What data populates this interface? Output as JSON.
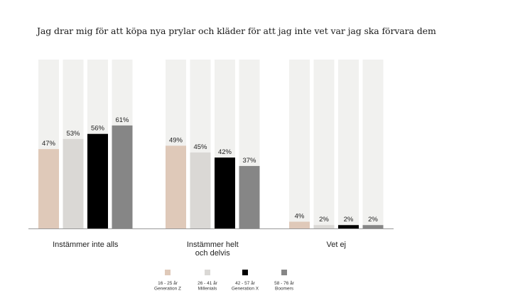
{
  "chart_data": {
    "type": "bar",
    "title": "Jag drar mig för att köpa nya prylar och kläder för att jag inte vet var jag ska förvara dem",
    "categories": [
      [
        "Instämmer inte alls"
      ],
      [
        "Instämmer helt",
        "och delvis"
      ],
      [
        "Vet ej"
      ]
    ],
    "ylim": [
      0,
      100
    ],
    "series": [
      {
        "name": "16 - 25 år Generation Z",
        "legend_lines": [
          "16 - 25 år",
          "Generation Z"
        ],
        "values": [
          47,
          49,
          4
        ],
        "color": "#dfc9b9"
      },
      {
        "name": "26 - 41 år Millenials",
        "legend_lines": [
          "26 - 41 år",
          "Millenials"
        ],
        "values": [
          53,
          45,
          2
        ],
        "color": "#dad8d5"
      },
      {
        "name": "42 - 57 år Generation X",
        "legend_lines": [
          "42 - 57 år",
          "Generation X"
        ],
        "values": [
          56,
          42,
          2
        ],
        "color": "#000000"
      },
      {
        "name": "58 - 76 år Boomers",
        "legend_lines": [
          "58 - 76 år",
          "Boomers"
        ],
        "values": [
          61,
          37,
          2
        ],
        "color": "#868686"
      }
    ],
    "value_suffix": "%",
    "background_bar_color": "#f1f1ef",
    "axis_color": "#9a9a9a",
    "legend_position": "bottom"
  }
}
